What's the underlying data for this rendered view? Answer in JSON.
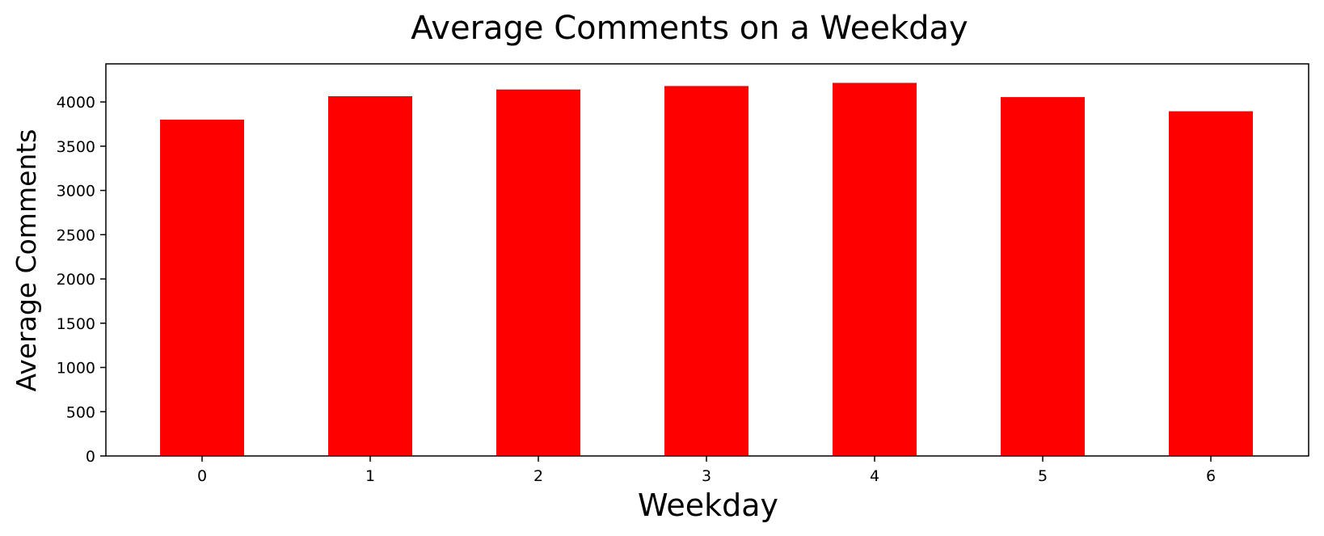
{
  "chart_data": {
    "type": "bar",
    "title": "Average Comments on a Weekday",
    "xlabel": "Weekday",
    "ylabel": "Average Comments",
    "categories": [
      "0",
      "1",
      "2",
      "3",
      "4",
      "5",
      "6"
    ],
    "values": [
      3800,
      4065,
      4140,
      4180,
      4215,
      4055,
      3895
    ],
    "ylim": [
      0,
      4430
    ],
    "yticks": [
      "0",
      "500",
      "1000",
      "1500",
      "2000",
      "2500",
      "3000",
      "3500",
      "4000"
    ],
    "bar_color": "#ff0000",
    "grid": false,
    "legend": "none"
  }
}
